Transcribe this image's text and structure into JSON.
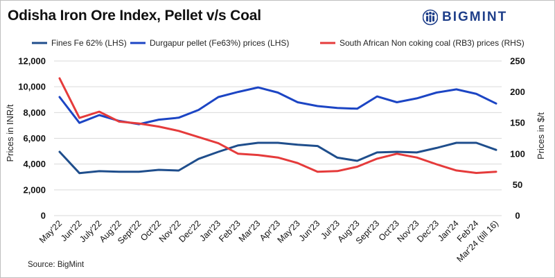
{
  "title": "Odisha Iron Ore Index, Pellet v/s Coal",
  "brand": {
    "name": "BIGMINT",
    "color": "#1f3f8a"
  },
  "source": "Source: BigMint",
  "chart_data": {
    "type": "line",
    "title": "Odisha Iron Ore Index, Pellet v/s Coal",
    "categories": [
      "May'22",
      "Jun'22",
      "July'22",
      "Aug'22",
      "Sept'22",
      "Oct'22",
      "Nov'22",
      "Dec'22",
      "Jan'23",
      "Feb'23",
      "Mar'23",
      "Apr'23",
      "May'23",
      "Jun'23",
      "Jul'23",
      "Aug'23",
      "Sept'23",
      "Oct'23",
      "Nov'23",
      "Dec'23",
      "Jan'24",
      "Feb'24",
      "Mar'24 (till 16)"
    ],
    "ylabel": "Prices in INR/t",
    "y2label": "Prices in $/t",
    "ylim": [
      0,
      12000
    ],
    "y2lim": [
      0,
      250
    ],
    "yticks": [
      "0",
      "2,000",
      "4,000",
      "6,000",
      "8,000",
      "10,000",
      "12,000"
    ],
    "y2ticks": [
      "0",
      "50",
      "100",
      "150",
      "200",
      "250"
    ],
    "legend_position": "top",
    "series": [
      {
        "name": "Fines Fe 62% (LHS)",
        "axis": "left",
        "color": "#1f4e8c",
        "values": [
          4950,
          3300,
          3450,
          3400,
          3400,
          3550,
          3500,
          4400,
          4950,
          5450,
          5650,
          5650,
          5500,
          5400,
          4500,
          4250,
          4900,
          4950,
          4900,
          5250,
          5650,
          5650,
          5100
        ]
      },
      {
        "name": "Durgapur pellet (Fe63%) prices (LHS)",
        "axis": "left",
        "color": "#1c45c4",
        "values": [
          9200,
          7200,
          7800,
          7350,
          7100,
          7450,
          7600,
          8200,
          9200,
          9600,
          9950,
          9550,
          8800,
          8500,
          8350,
          8300,
          9250,
          8800,
          9100,
          9550,
          9800,
          9450,
          8700
        ]
      },
      {
        "name": "South African Non coking coal (RB3) prices (RHS)",
        "axis": "right",
        "color": "#e53b3b",
        "values": [
          222,
          158,
          168,
          152,
          149,
          144,
          137,
          127,
          117,
          100,
          98,
          94,
          85,
          71,
          72,
          79,
          92,
          100,
          94,
          83,
          73,
          69,
          71
        ]
      }
    ]
  }
}
